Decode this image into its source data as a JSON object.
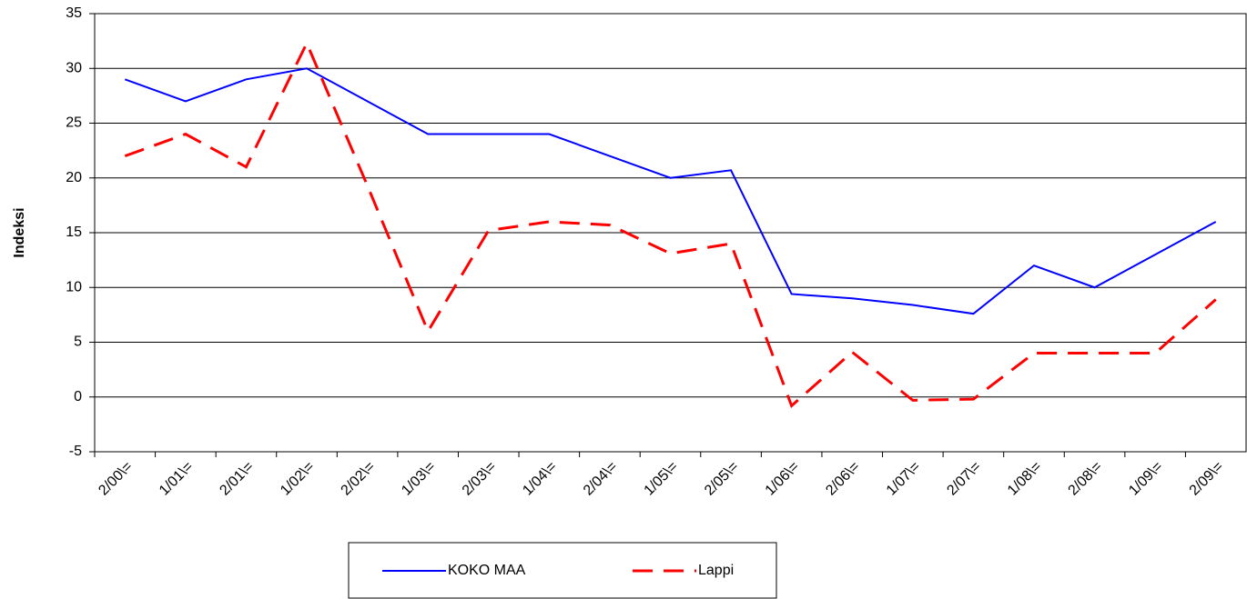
{
  "chart_data": {
    "type": "line",
    "y_label": "Indeksi",
    "categories": [
      "2/00\\=",
      "1/01\\=",
      "2/01\\=",
      "1/02\\=",
      "2/02\\=",
      "1/03\\=",
      "2/03\\=",
      "1/04\\=",
      "2/04\\=",
      "1/05\\=",
      "2/05\\=",
      "1/06\\=",
      "2/06\\=",
      "1/07\\=",
      "2/07\\=",
      "1/08\\=",
      "2/08\\=",
      "1/09\\=",
      "2/09\\="
    ],
    "series": [
      {
        "name": "KOKO MAA",
        "color": "#0000ff",
        "dash": "solid",
        "values": [
          29,
          27,
          29,
          30,
          27,
          24,
          24,
          24,
          22,
          20,
          20.7,
          9.4,
          9,
          8.4,
          7.6,
          12,
          10,
          13,
          16
        ]
      },
      {
        "name": "Lappi",
        "color": "#ff0000",
        "dash": "dashed",
        "values": [
          22,
          24,
          21,
          32.3,
          19.3,
          6,
          15.2,
          16,
          15.7,
          13.1,
          14,
          -0.8,
          4.1,
          -0.3,
          -0.2,
          4,
          4,
          4,
          8.9
        ]
      }
    ],
    "ylim": [
      -5,
      35
    ],
    "yticks": [
      -5,
      0,
      5,
      10,
      15,
      20,
      25,
      30,
      35
    ],
    "grid": true
  }
}
